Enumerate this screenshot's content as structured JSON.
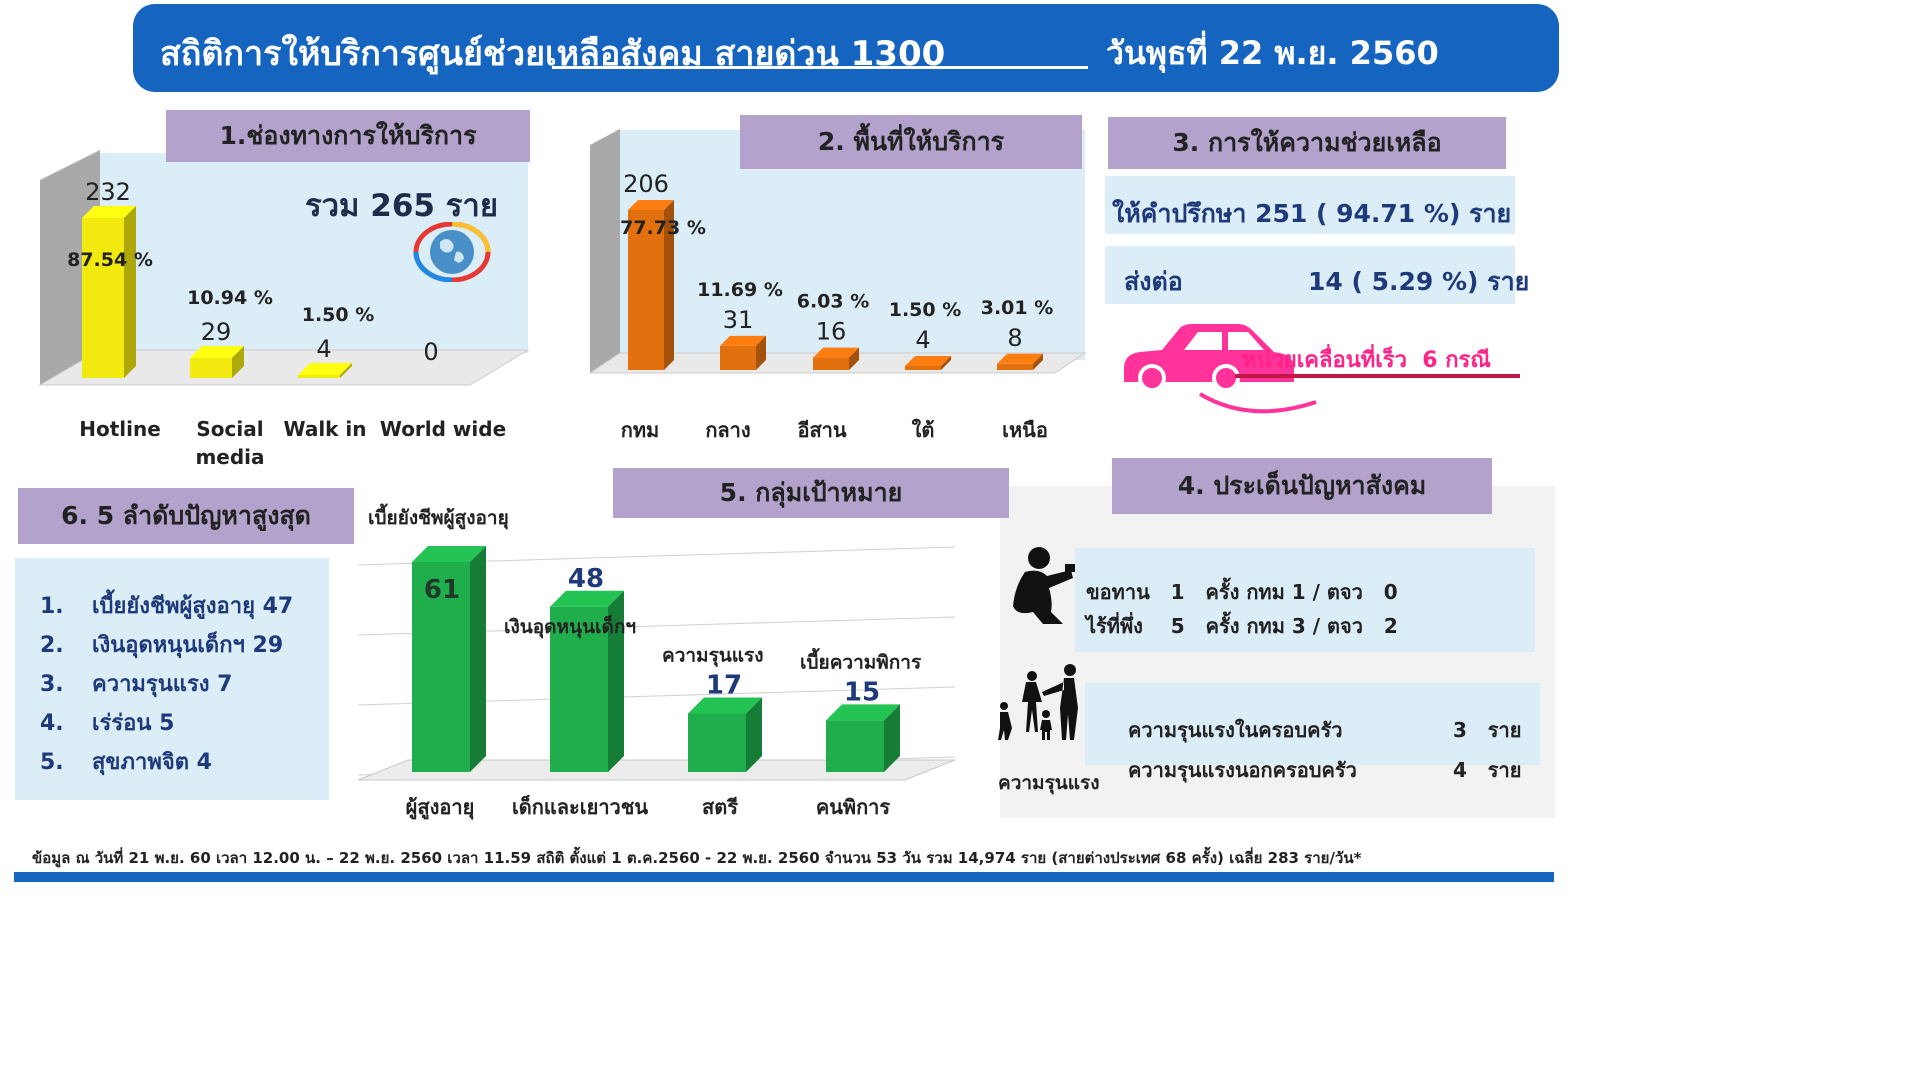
{
  "header": {
    "title": "สถิติการให้บริการศูนย์ช่วยเหลือสังคม สายด่วน 1300",
    "date": "วันพุธที่ 22 พ.ย. 2560"
  },
  "section1": {
    "title": "1.ช่องทางการให้บริการ",
    "total": "รวม 265 ราย"
  },
  "section2": {
    "title": "2. พื้นที่ให้บริการ"
  },
  "section3": {
    "title": "3. การให้ความช่วยเหลือ",
    "advice": "ให้คำปรึกษา 251 ( 94.71 %) ราย",
    "referral_label": "ส่งต่อ",
    "referral_value": "14 ( 5.29 %) ราย",
    "mobile_unit": "หน่วยเคลื่อนที่เร็ว  6 กรณี"
  },
  "section4": {
    "title": "4. ประเด็นปัญหาสังคม",
    "begging": "ขอทาน   1   ครั้ง กทม 1 / ตจว   0",
    "homeless": "ไร้ที่พึ่ง    5   ครั้ง กทม 3 / ตจว   2",
    "violence_caption": "ความรุนแรง",
    "domestic_label": "ความรุนแรงในครอบครัว",
    "domestic_value": "3   ราย",
    "outside_label": "ความรุนแรงนอกครอบครัว",
    "outside_value": "4   ราย"
  },
  "section5": {
    "title": "5. กลุ่มเป้าหมาย"
  },
  "section6": {
    "title": "6. 5 ลำดับปัญหาสูงสุด",
    "items": [
      {
        "num": "1.",
        "text": "เบี้ยยังชีพผู้สูงอายุ 47"
      },
      {
        "num": "2.",
        "text": "เงินอุดหนุนเด็กฯ 29"
      },
      {
        "num": "3.",
        "text": "ความรุนแรง 7"
      },
      {
        "num": "4.",
        "text": "เร่ร่อน 5"
      },
      {
        "num": "5.",
        "text": "สุขภาพจิต 4"
      }
    ]
  },
  "footer": "ข้อมูล ณ วันที่ 21 พ.ย. 60 เวลา 12.00 น. – 22 พ.ย. 2560 เวลา 11.59   สถิติ ตั้งแต่ 1 ต.ค.2560 -   22 พ.ย. 2560 จำนวน 53 วัน  รวม 14,974 ราย (สายต่างประเทศ 68 ครั้ง) เฉลี่ย 283 ราย/วัน*",
  "colors": {
    "header": "#1565c0",
    "section_title": "#b3a2cc",
    "panel": "#dbedf6",
    "channel_bar": "#f2ea0f",
    "area_bar": "#e3700f",
    "target_bar": "#1fae4b",
    "car": "#ff3399"
  },
  "chart_data": [
    {
      "type": "bar",
      "categories": [
        "Hotline",
        "Social media",
        "Walk in",
        "World wide"
      ],
      "values": [
        232,
        29,
        4,
        0
      ],
      "percent_labels": [
        "87.54 %",
        "10.94 %",
        "1.50 %",
        ""
      ],
      "ylim": [
        0,
        232
      ]
    },
    {
      "type": "bar",
      "categories": [
        "กทม",
        "กลาง",
        "อีสาน",
        "ใต้",
        "เหนือ"
      ],
      "values": [
        206,
        31,
        16,
        4,
        8
      ],
      "percent_labels": [
        "77.73 %",
        "11.69 %",
        "6.03 %",
        "1.50 %",
        "3.01 %"
      ],
      "ylim": [
        0,
        206
      ]
    },
    {
      "type": "bar",
      "categories": [
        "ผู้สูงอายุ",
        "เด็กและเยาวชน",
        "สตรี",
        "คนพิการ"
      ],
      "values": [
        61,
        48,
        17,
        15
      ],
      "bar_labels": [
        "เบี้ยยังชีพผู้สูงอายุ",
        "เงินอุดหนุนเด็กฯ",
        "ความรุนแรง",
        "เบี้ยความพิการ"
      ],
      "ylim": [
        0,
        61
      ]
    }
  ]
}
